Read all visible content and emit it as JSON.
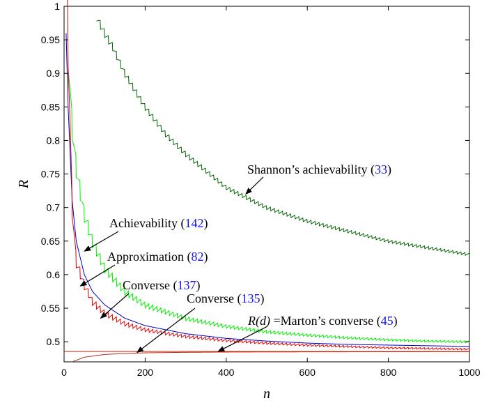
{
  "chart_data": {
    "type": "line",
    "xlabel": "n",
    "ylabel": "R",
    "xlim": [
      0,
      1000
    ],
    "ylim": [
      0.47,
      1.0
    ],
    "grid": false,
    "x_ticks": [
      "0",
      "200",
      "400",
      "600",
      "800",
      "1000"
    ],
    "y_ticks": [
      "0.5",
      "0.55",
      "0.6",
      "0.65",
      "0.7",
      "0.75",
      "0.8",
      "0.85",
      "0.9",
      "0.95",
      "1"
    ],
    "series": [
      {
        "name": "Shannon's achievability",
        "color": "#006400",
        "x": [
          80,
          100,
          120,
          150,
          200,
          250,
          300,
          400,
          500,
          600,
          700,
          800,
          900,
          1000
        ],
        "y": [
          0.985,
          0.96,
          0.94,
          0.9,
          0.85,
          0.81,
          0.78,
          0.73,
          0.7,
          0.68,
          0.665,
          0.65,
          0.64,
          0.63
        ]
      },
      {
        "name": "Achievability",
        "color": "#00ee00",
        "x": [
          10,
          20,
          30,
          50,
          70,
          100,
          150,
          200,
          300,
          400,
          500,
          600,
          700,
          800,
          900,
          1000
        ],
        "y": [
          0.93,
          0.82,
          0.76,
          0.69,
          0.65,
          0.61,
          0.575,
          0.555,
          0.535,
          0.523,
          0.515,
          0.51,
          0.506,
          0.503,
          0.501,
          0.5
        ]
      },
      {
        "name": "Approximation",
        "color": "#0000cc",
        "x": [
          5,
          10,
          20,
          30,
          50,
          70,
          100,
          150,
          200,
          300,
          400,
          500,
          600,
          700,
          800,
          900,
          1000
        ],
        "y": [
          0.96,
          0.85,
          0.71,
          0.65,
          0.6,
          0.575,
          0.555,
          0.535,
          0.524,
          0.512,
          0.505,
          0.501,
          0.498,
          0.496,
          0.495,
          0.494,
          0.493
        ]
      },
      {
        "name": "Converse",
        "color": "#dd0000",
        "x": [
          8,
          20,
          30,
          50,
          70,
          100,
          150,
          200,
          300,
          400,
          500,
          600,
          700,
          800,
          900,
          1000
        ],
        "y": [
          0.99,
          0.7,
          0.62,
          0.585,
          0.56,
          0.543,
          0.527,
          0.518,
          0.508,
          0.502,
          0.498,
          0.495,
          0.493,
          0.491,
          0.49,
          0.489
        ]
      },
      {
        "name": "Converse",
        "color": "#b03020",
        "x": [
          20,
          50,
          100,
          150,
          200,
          300,
          400,
          500,
          700,
          1000
        ],
        "y": [
          0.47,
          0.477,
          0.481,
          0.4825,
          0.4835,
          0.4842,
          0.4846,
          0.4848,
          0.485,
          0.4852
        ]
      },
      {
        "name": "R(d) = Marton's converse",
        "color": "#cc2200",
        "x": [
          0,
          1000
        ],
        "y": [
          0.4855,
          0.4855
        ]
      }
    ],
    "annotations": [
      {
        "text": "Shannon’s achievability",
        "ref": "33",
        "target_x": 448,
        "target_y": 0.72
      },
      {
        "text": "Achievability",
        "ref": "142",
        "target_x": 50,
        "target_y": 0.635
      },
      {
        "text": "Approximation",
        "ref": "82",
        "target_x": 40,
        "target_y": 0.583
      },
      {
        "text": "Converse",
        "ref": "137",
        "target_x": 90,
        "target_y": 0.535
      },
      {
        "text": "Converse",
        "ref": "135",
        "target_x": 180,
        "target_y": 0.484
      },
      {
        "math": "R(d)",
        "text": " =Marton’s converse",
        "ref": "45",
        "target_x": 380,
        "target_y": 0.4855
      }
    ]
  }
}
